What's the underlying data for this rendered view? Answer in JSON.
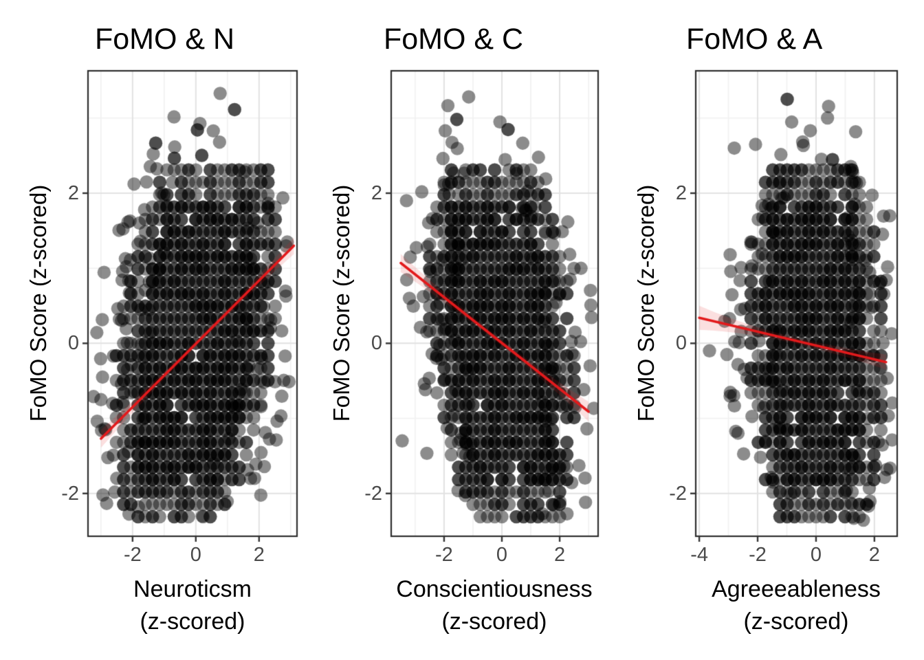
{
  "figure": {
    "background": "#ffffff"
  },
  "styles": {
    "point_color": "#000000",
    "point_alpha": 0.45,
    "reg_line_color": "#e31a1c",
    "ci_fill": "rgba(227,26,28,0.14)",
    "grid_major": "#e2e2e2",
    "grid_minor": "#f1f1f1",
    "panel_border": "#2e2e2e",
    "tick_color": "#333333",
    "tick_label_color": "#4a4a4a",
    "text_color": "#000000"
  },
  "chart_data": [
    {
      "type": "scatter",
      "title": "FoMO & N",
      "xlabel_line1": "Neuroticsm",
      "xlabel_line2": "(z-scored)",
      "ylabel": "FoMO Score (z-scored)",
      "xlim": [
        -3.41,
        3.2
      ],
      "ylim": [
        -2.57,
        3.63
      ],
      "xticks": [
        {
          "v": -2,
          "label": "-2"
        },
        {
          "v": 0,
          "label": "0"
        },
        {
          "v": 2,
          "label": "2"
        }
      ],
      "yticks": [
        {
          "v": 2,
          "label": "2"
        },
        {
          "v": 0,
          "label": "0"
        },
        {
          "v": -2,
          "label": "-2"
        }
      ],
      "grid_major_x": [
        -2,
        0,
        2
      ],
      "grid_minor_x": [
        -3,
        -1,
        1,
        3
      ],
      "grid_major_y": [
        -2,
        0,
        2
      ],
      "grid_minor_y": [
        -1,
        1,
        3
      ],
      "regression": {
        "x": [
          -3.0,
          3.1
        ],
        "y": [
          -1.27,
          1.3
        ],
        "slope": 0.42,
        "ci_mid": 0.04,
        "ci_left": 0.12,
        "ci_right": 0.11
      },
      "points": {
        "note": "dense discretized point cloud, rows every 0.165 z, black alpha 0.45",
        "seed": 101,
        "row_y_min": -2.31,
        "row_y_step": 0.165,
        "row_count": 35,
        "center_tilt": 0.28,
        "halfwidth_max": 2.5,
        "envelope_center": 0.15,
        "envelope_a_top": 3.05,
        "envelope_a_bottom": 3.35,
        "x_reach_extra": 0.7,
        "outliers": [
          [
            -3.0,
            -0.75
          ],
          [
            -2.85,
            -1.15
          ],
          [
            -2.95,
            -0.45
          ]
        ]
      }
    },
    {
      "type": "scatter",
      "title": "FoMO & C",
      "xlabel_line1": "Conscientiousness",
      "xlabel_line2": "(z-scored)",
      "ylabel": "FoMO Score (z-scored)",
      "xlim": [
        -3.83,
        3.33
      ],
      "ylim": [
        -2.57,
        3.63
      ],
      "xticks": [
        {
          "v": -2,
          "label": "-2"
        },
        {
          "v": 0,
          "label": "0"
        },
        {
          "v": 2,
          "label": "2"
        }
      ],
      "yticks": [
        {
          "v": 2,
          "label": "2"
        },
        {
          "v": 0,
          "label": "0"
        },
        {
          "v": -2,
          "label": "-2"
        }
      ],
      "grid_major_x": [
        -2,
        0,
        2
      ],
      "grid_minor_x": [
        -3,
        -1,
        1,
        3
      ],
      "grid_major_y": [
        -2,
        0,
        2
      ],
      "grid_minor_y": [
        -1,
        1,
        3
      ],
      "regression": {
        "x": [
          -3.5,
          3.0
        ],
        "y": [
          1.07,
          -0.91
        ],
        "slope": -0.3,
        "ci_mid": 0.04,
        "ci_left": 0.12,
        "ci_right": 0.13
      },
      "points": {
        "note": "dense discretized point cloud, rows every 0.165 z, black alpha 0.45",
        "seed": 202,
        "row_y_min": -2.31,
        "row_y_step": 0.165,
        "row_count": 35,
        "center_tilt": -0.2,
        "halfwidth_max": 2.5,
        "envelope_center": 0.15,
        "envelope_a_top": 3.05,
        "envelope_a_bottom": 3.35,
        "x_reach_extra": 0.7,
        "outliers": [
          [
            -3.3,
            1.9
          ],
          [
            -3.45,
            -1.3
          ],
          [
            -3.2,
            0.6
          ]
        ]
      }
    },
    {
      "type": "scatter",
      "title": "FoMO & A",
      "xlabel_line1": "Agreeeableness",
      "xlabel_line2": "(z-scored)",
      "ylabel": "FoMO Score (z-scored)",
      "xlim": [
        -4.12,
        2.78
      ],
      "ylim": [
        -2.57,
        3.63
      ],
      "xticks": [
        {
          "v": -4,
          "label": "-4"
        },
        {
          "v": -2,
          "label": "-2"
        },
        {
          "v": 0,
          "label": "0"
        },
        {
          "v": 2,
          "label": "2"
        }
      ],
      "yticks": [
        {
          "v": 2,
          "label": "2"
        },
        {
          "v": 0,
          "label": "0"
        },
        {
          "v": -2,
          "label": "-2"
        }
      ],
      "grid_major_x": [
        -4,
        -2,
        0,
        2
      ],
      "grid_minor_x": [
        -3,
        -1,
        1
      ],
      "grid_major_y": [
        -2,
        0,
        2
      ],
      "grid_minor_y": [
        -1,
        1,
        3
      ],
      "regression": {
        "x": [
          -4.0,
          2.4
        ],
        "y": [
          0.34,
          -0.25
        ],
        "slope": -0.09,
        "ci_mid": 0.04,
        "ci_left": 0.16,
        "ci_right": 0.1
      },
      "points": {
        "note": "dense discretized point cloud, rows every 0.165 z, black alpha 0.45",
        "seed": 303,
        "row_y_min": -2.31,
        "row_y_step": 0.165,
        "row_count": 35,
        "center_tilt": -0.07,
        "halfwidth_max": 2.4,
        "envelope_center": 0.15,
        "envelope_a_top": 3.05,
        "envelope_a_bottom": 3.35,
        "x_reach_extra": 0.6,
        "outliers": [
          [
            -3.65,
            -0.1
          ],
          [
            -2.8,
            2.6
          ]
        ]
      }
    }
  ]
}
